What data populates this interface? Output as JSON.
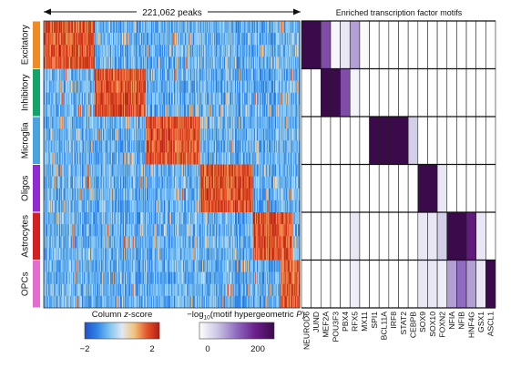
{
  "chart_data": [
    {
      "type": "heatmap",
      "title": "221,062 peaks",
      "row_labels": [
        "Excitatory",
        "Inhibitory",
        "Microglia",
        "Oligos",
        "Astrocytes",
        "OPCs"
      ],
      "row_colors": [
        "#f08a24",
        "#14a36b",
        "#4aa3df",
        "#8f2ad4",
        "#d42020",
        "#e56cd0"
      ],
      "color_scale": {
        "title": "Column z-score",
        "min": -2,
        "max": 2,
        "ticks": [
          "−2",
          "2"
        ],
        "colors": [
          "#1f4fc7",
          "#2f86e6",
          "#7fc3f0",
          "#e2e8ef",
          "#f2c27a",
          "#e5542a",
          "#b21d12"
        ]
      }
    },
    {
      "type": "heatmap",
      "title": "Enriched transcription factor motifs",
      "row_labels": [
        "Excitatory",
        "Inhibitory",
        "Microglia",
        "Oligos",
        "Astrocytes",
        "OPCs"
      ],
      "columns": [
        "NEUROD6",
        "JUND",
        "MEF2A",
        "POU3F3",
        "PBX4",
        "RFX5",
        "MX11",
        "SPI1",
        "BCL11A",
        "IRF8",
        "STAT2",
        "CEBPB",
        "SOX9",
        "SOX10",
        "FOXN2",
        "NFIA",
        "NFIB",
        "HNF4G",
        "GSX1",
        "ASCL1"
      ],
      "values": [
        [
          240,
          240,
          120,
          8,
          20,
          70,
          5,
          0,
          0,
          0,
          0,
          0,
          0,
          0,
          0,
          0,
          0,
          0,
          0,
          0
        ],
        [
          0,
          0,
          240,
          240,
          120,
          10,
          0,
          0,
          0,
          0,
          0,
          0,
          0,
          0,
          0,
          0,
          0,
          0,
          0,
          0
        ],
        [
          0,
          0,
          0,
          0,
          0,
          0,
          0,
          240,
          240,
          240,
          240,
          40,
          0,
          0,
          0,
          0,
          0,
          0,
          0,
          0
        ],
        [
          0,
          0,
          0,
          0,
          0,
          0,
          0,
          0,
          0,
          0,
          0,
          0,
          240,
          240,
          20,
          0,
          0,
          0,
          0,
          0
        ],
        [
          0,
          0,
          0,
          0,
          0,
          20,
          0,
          0,
          0,
          0,
          0,
          0,
          20,
          20,
          40,
          240,
          240,
          160,
          20,
          0
        ],
        [
          0,
          0,
          0,
          0,
          0,
          15,
          0,
          0,
          0,
          0,
          0,
          0,
          20,
          20,
          15,
          70,
          100,
          70,
          20,
          240
        ]
      ],
      "color_scale": {
        "title": "−log10(motif hypergeometric P)",
        "min": 0,
        "max": 200,
        "ticks": [
          "0",
          "200"
        ],
        "colors": [
          "#ffffff",
          "#c9c3e3",
          "#8e6ac0",
          "#6a1f8a",
          "#3b0a4a"
        ]
      }
    }
  ]
}
